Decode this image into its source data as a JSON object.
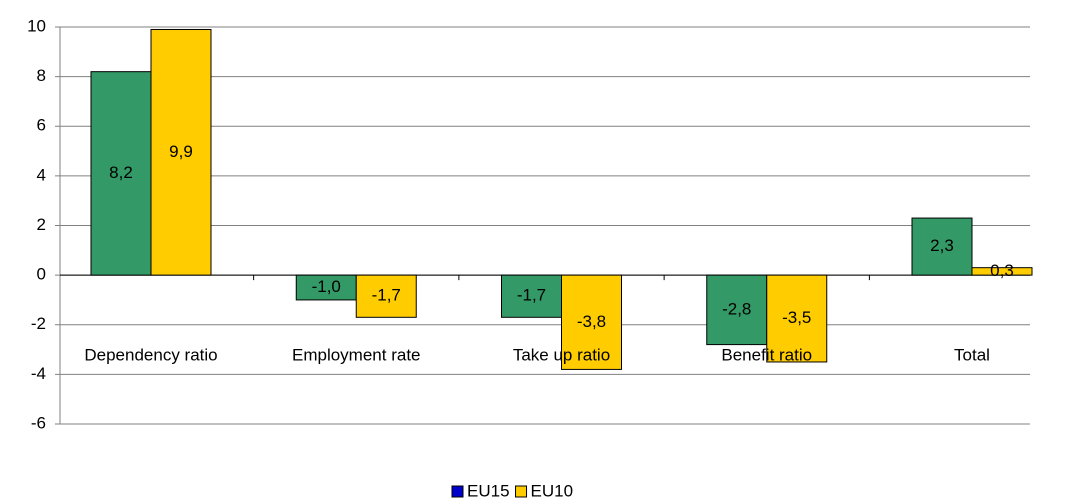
{
  "chart_data": {
    "type": "bar",
    "categories": [
      "Dependency ratio",
      "Employment rate",
      "Take up ratio",
      "Benefit ratio",
      "Total"
    ],
    "series": [
      {
        "name": "EU15",
        "color": "#339966",
        "legend_color": "#0000cc",
        "values": [
          8.2,
          -1.0,
          -1.7,
          -2.8,
          2.3
        ],
        "value_labels": [
          "8,2",
          "-1,0",
          "-1,7",
          "-2,8",
          "2,3"
        ]
      },
      {
        "name": "EU10",
        "color": "#ffcc00",
        "legend_color": "#ffcc00",
        "values": [
          9.9,
          -1.7,
          -3.8,
          -3.5,
          0.3
        ],
        "value_labels": [
          "9,9",
          "-1,7",
          "-3,8",
          "-3,5",
          "0,3"
        ]
      }
    ],
    "ylim": [
      -6,
      10
    ],
    "yticks": [
      -6,
      -4,
      -2,
      0,
      2,
      4,
      6,
      8,
      10
    ],
    "grid": true,
    "legend": "bottom"
  }
}
